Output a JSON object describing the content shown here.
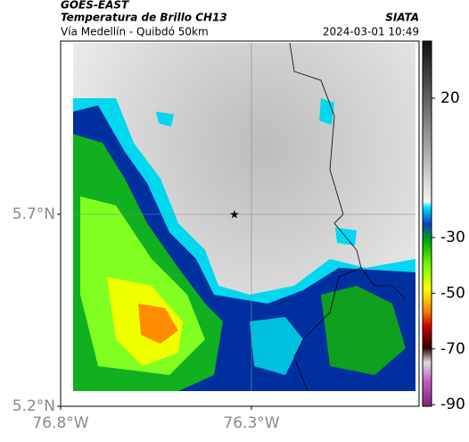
{
  "header": {
    "satellite": "GOES-EAST",
    "product": "Temperatura de Brillo CH13",
    "route": "Vía Medellín - Quibdó 50km",
    "source": "SIATA",
    "datetime": "2024-03-01 10:49"
  },
  "map": {
    "lat_ticks": [
      {
        "value": 5.7,
        "label": "5.7°N"
      },
      {
        "value": 5.2,
        "label": "5.2°N"
      }
    ],
    "lon_ticks": [
      {
        "value": -76.8,
        "label": "76.8°W"
      },
      {
        "value": -76.3,
        "label": "76.3°W"
      }
    ]
  },
  "colorbar": {
    "ticks": [
      20,
      -30,
      -50,
      -70,
      -90
    ]
  }
}
